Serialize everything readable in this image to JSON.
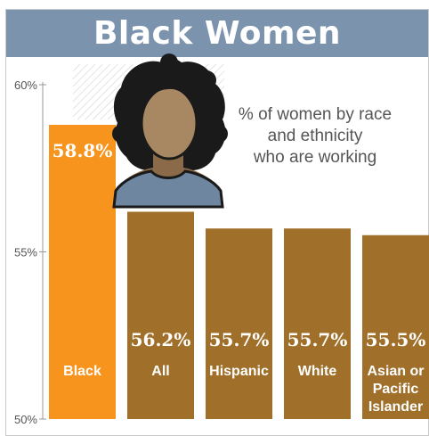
{
  "title": "Black Women",
  "annotation": [
    "% of women by race",
    "and ethnicity",
    "who are working"
  ],
  "colors": {
    "header": "#7b93ad",
    "highlight": "#f7941d",
    "bar": "#a0702a"
  },
  "icons": [
    "woman-avatar-icon"
  ],
  "chart_data": {
    "type": "bar",
    "categories": [
      [
        "Black"
      ],
      [
        "All"
      ],
      [
        "Hispanic"
      ],
      [
        "White"
      ],
      [
        "Asian or",
        "Pacific",
        "Islander"
      ]
    ],
    "values": [
      58.8,
      56.2,
      55.7,
      55.7,
      55.5
    ],
    "value_labels": [
      "58.8%",
      "56.2%",
      "55.7%",
      "55.7%",
      "55.5%"
    ],
    "highlight_index": 0,
    "ylim": [
      50,
      60
    ],
    "yticks": [
      60,
      55,
      50
    ],
    "ytick_labels": [
      "60%",
      "55%",
      "50%"
    ],
    "title": "Black Women",
    "xlabel": "",
    "ylabel": ""
  }
}
